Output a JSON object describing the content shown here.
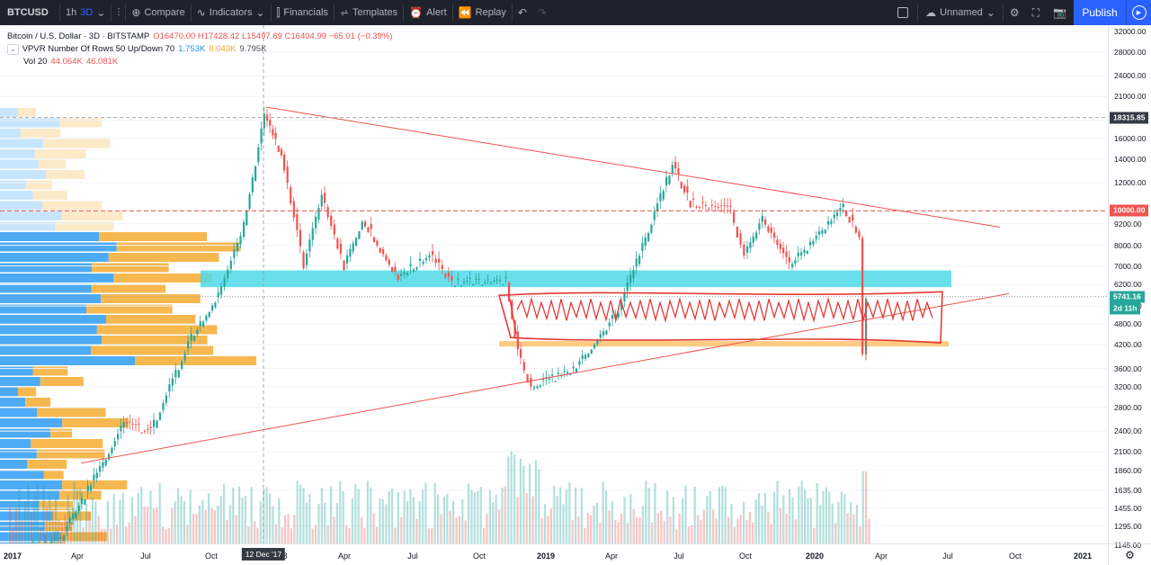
{
  "toolbar": {
    "symbol": "BTCUSD",
    "intervals": [
      "1h",
      "3D"
    ],
    "active_interval": "3D",
    "compare": "Compare",
    "indicators": "Indicators",
    "financials": "Financials",
    "templates": "Templates",
    "alert": "Alert",
    "replay": "Replay",
    "layout_name": "Unnamed",
    "publish": "Publish"
  },
  "legend": {
    "title": "Bitcoin / U.S. Dollar · 3D · BITSTAMP",
    "ohlc": "O16470.00 H17428.42 L15497.69 C16404.99 −65.01 (−0.39%)",
    "vpvr_name": "VPVR Number Of Rows 50 Up/Down 70",
    "vpvr_v1": "1.753K",
    "vpvr_v2": "8.043K",
    "vpvr_v3": "9.795K",
    "vol_name": "Vol 20",
    "vol_v1": "44.064K",
    "vol_v2": "46.081K"
  },
  "price_axis": {
    "labels": [
      "32000.00",
      "28000.00",
      "24000.00",
      "21000.00",
      "18000.00",
      "16000.00",
      "14000.00",
      "12000.00",
      "10000.00",
      "9200.00",
      "8000.00",
      "7000.00",
      "6200.00",
      "5400.00",
      "4800.00",
      "4200.00",
      "3600.00",
      "3200.00",
      "2800.00",
      "2400.00",
      "2100.00",
      "1860.00",
      "1635.00",
      "1455.00",
      "1295.00",
      "1145.00"
    ],
    "tags": {
      "high": "18315.85",
      "line": "10000.00",
      "last": "5741.16",
      "countdown": "2d 11h"
    }
  },
  "time_axis": {
    "labels": [
      "2017",
      "Apr",
      "Jul",
      "Oct",
      "8",
      "Apr",
      "Jul",
      "Oct",
      "2019",
      "Apr",
      "Jul",
      "Oct",
      "2020",
      "Apr",
      "Jul",
      "Oct",
      "2021"
    ],
    "cursor_date": "12 Dec '17"
  },
  "colors": {
    "up": "#26a69a",
    "down": "#ef5350",
    "vpvr_up": "#2196f3",
    "vpvr_down": "#f5a623",
    "cyan_zone": "#4dd9e6",
    "orange_zone": "#ffb74d",
    "trendline": "#ef5350"
  },
  "chart_data": {
    "type": "candlestick",
    "scale": "log",
    "ylim": [
      1145,
      32000
    ],
    "price_path": [
      [
        "2017-01",
        1000
      ],
      [
        "2017-04",
        1200
      ],
      [
        "2017-06",
        2500
      ],
      [
        "2017-07",
        2400
      ],
      [
        "2017-09",
        4500
      ],
      [
        "2017-10",
        5500
      ],
      [
        "2017-11",
        8000
      ],
      [
        "2017-12",
        18300
      ],
      [
        "2018-01",
        14000
      ],
      [
        "2018-02",
        7000
      ],
      [
        "2018-03",
        11000
      ],
      [
        "2018-04",
        7000
      ],
      [
        "2018-05",
        9500
      ],
      [
        "2018-07",
        6500
      ],
      [
        "2018-08",
        7500
      ],
      [
        "2018-09",
        6300
      ],
      [
        "2018-11",
        6400
      ],
      [
        "2018-11",
        4000
      ],
      [
        "2018-12",
        3200
      ],
      [
        "2019-02",
        3600
      ],
      [
        "2019-04",
        5200
      ],
      [
        "2019-06",
        13800
      ],
      [
        "2019-07",
        10500
      ],
      [
        "2019-09",
        10000
      ],
      [
        "2019-10",
        7500
      ],
      [
        "2019-11",
        9200
      ],
      [
        "2019-12",
        7000
      ],
      [
        "2020-02",
        10300
      ],
      [
        "2020-03",
        8000
      ],
      [
        "2020-03",
        4000
      ],
      [
        "2020-03",
        5741.16
      ]
    ],
    "levels": {
      "high": 18315.85,
      "resistance": 10000,
      "last": 5741.16
    },
    "zones": [
      {
        "name": "cyan",
        "low": 6100,
        "high": 6800
      },
      {
        "name": "orange",
        "low": 4150,
        "high": 4300
      }
    ]
  }
}
